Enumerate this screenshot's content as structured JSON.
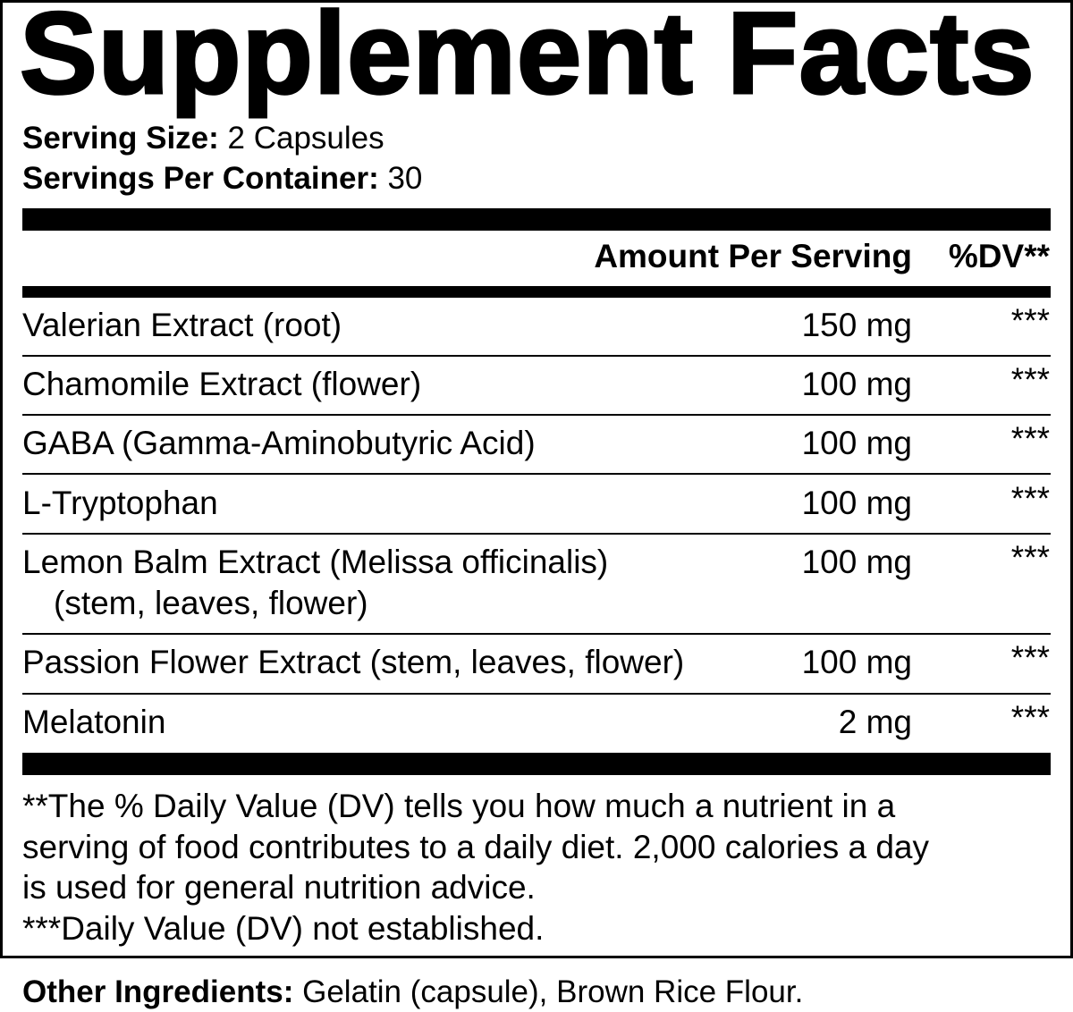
{
  "title": "Supplement Facts",
  "serving": {
    "size_label": "Serving Size:",
    "size_value": "2 Capsules",
    "per_container_label": "Servings Per Container:",
    "per_container_value": "30"
  },
  "header": {
    "amount": "Amount Per Serving",
    "dv": "%DV**"
  },
  "rows": [
    {
      "name": "Valerian Extract (root)",
      "amount": "150 mg",
      "dv": "***"
    },
    {
      "name": "Chamomile Extract (flower)",
      "amount": "100 mg",
      "dv": "***"
    },
    {
      "name": "GABA (Gamma-Aminobutyric Acid)",
      "amount": "100 mg",
      "dv": "***"
    },
    {
      "name": "L-Tryptophan",
      "amount": "100 mg",
      "dv": "***"
    },
    {
      "name": "Lemon Balm Extract (Melissa officinalis)",
      "name2": "(stem, leaves, flower)",
      "amount": "100 mg",
      "dv": "***"
    },
    {
      "name": "Passion Flower Extract (stem, leaves, flower)",
      "amount": "100 mg",
      "dv": "***"
    },
    {
      "name": "Melatonin",
      "amount": "2 mg",
      "dv": "***"
    }
  ],
  "footnotes": [
    "**The % Daily Value (DV) tells you how much a nutrient in a",
    "serving of food contributes to a daily diet. 2,000 calories a day",
    "is used for general nutrition advice.",
    "***Daily Value (DV) not established."
  ],
  "other": {
    "label": "Other Ingredients:",
    "value": "Gelatin (capsule), Brown Rice Flour."
  }
}
